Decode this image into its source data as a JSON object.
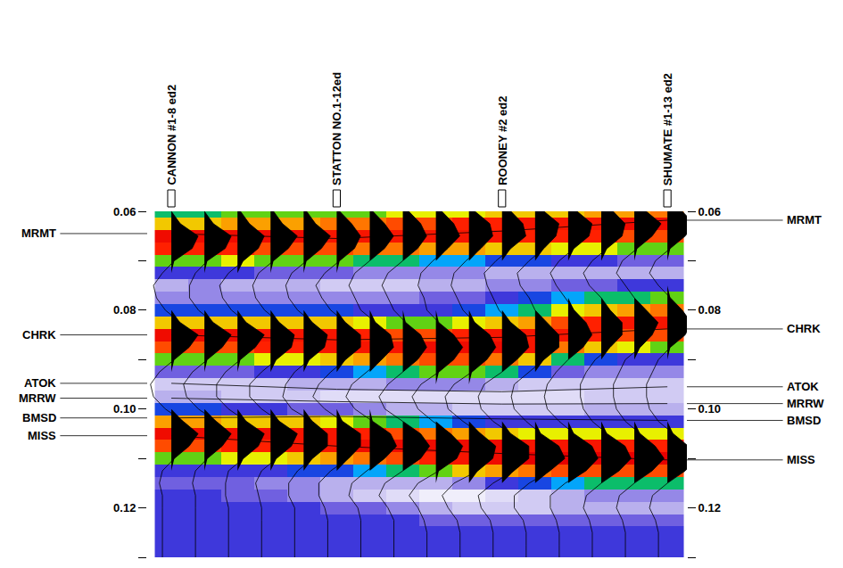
{
  "chart_data": {
    "type": "seismic_section",
    "ylim": [
      0.06,
      0.13
    ],
    "yticks": [
      0.06,
      0.08,
      {
        "value": 0.1,
        "label": "0.10"
      },
      0.12
    ],
    "yticks_minor": [
      0.07,
      0.09,
      0.11,
      0.13
    ],
    "tick_labels": "y",
    "zlim": [
      -1,
      1
    ],
    "wells": [
      {
        "name": "CANNON #1-8 ed2",
        "trace": 0
      },
      {
        "name": "STATTON NO.1-12ed",
        "trace": 5
      },
      {
        "name": "ROONEY #2 ed2",
        "trace": 10
      },
      {
        "name": "SHUMATE #1-13 ed2",
        "trace": 15
      }
    ],
    "horizons": [
      {
        "name": "MRMT",
        "times": [
          0.0645,
          0.0655,
          0.064,
          0.0618
        ]
      },
      {
        "name": "CHRK",
        "times": [
          0.085,
          0.086,
          0.0855,
          0.0838
        ]
      },
      {
        "name": "ATOK",
        "times": [
          0.0948,
          0.096,
          0.0965,
          0.0955
        ]
      },
      {
        "name": "MRRW",
        "times": [
          0.0978,
          0.0985,
          0.099,
          0.0989
        ]
      },
      {
        "name": "BMSD",
        "times": [
          0.1018,
          0.1015,
          0.102,
          0.1023
        ]
      },
      {
        "name": "MISS",
        "times": [
          0.1054,
          0.1075,
          0.109,
          0.1103
        ]
      }
    ],
    "times": [
      0.06,
      0.0625,
      0.065,
      0.0675,
      0.07,
      0.0725,
      0.075,
      0.0775,
      0.08,
      0.0825,
      0.085,
      0.0875,
      0.09,
      0.0925,
      0.095,
      0.0975,
      0.1,
      0.1025,
      0.105,
      0.1075,
      0.11,
      0.1125,
      0.115,
      0.1175,
      0.12,
      0.1225,
      0.125,
      0.1275,
      0.13
    ],
    "amplitudes": [
      [
        0.0,
        0.0,
        0.1,
        0.1,
        0.1,
        0.1,
        0.1,
        0.2,
        0.2,
        0.2,
        0.3,
        0.3,
        0.3,
        0.4,
        0.4,
        0.5
      ],
      [
        0.3,
        0.3,
        0.4,
        0.4,
        0.4,
        0.5,
        0.5,
        0.6,
        0.6,
        0.7,
        0.7,
        0.8,
        0.8,
        0.8,
        0.9,
        0.9
      ],
      [
        0.9,
        0.9,
        0.9,
        0.9,
        0.9,
        0.8,
        0.8,
        0.8,
        0.8,
        0.8,
        0.8,
        0.7,
        0.7,
        0.7,
        0.6,
        0.6
      ],
      [
        0.7,
        0.7,
        0.7,
        0.6,
        0.6,
        0.6,
        0.5,
        0.5,
        0.4,
        0.4,
        0.3,
        0.3,
        0.2,
        0.2,
        0.1,
        0.1
      ],
      [
        0.1,
        0.1,
        0.2,
        0.1,
        0.1,
        0.1,
        0.0,
        0.0,
        -0.1,
        -0.1,
        -0.2,
        -0.2,
        -0.3,
        -0.3,
        -0.4,
        -0.4
      ],
      [
        -0.3,
        -0.3,
        -0.3,
        -0.4,
        -0.4,
        -0.4,
        -0.5,
        -0.5,
        -0.5,
        -0.5,
        -0.6,
        -0.6,
        -0.6,
        -0.6,
        -0.6,
        -0.6
      ],
      [
        -0.6,
        -0.5,
        -0.6,
        -0.6,
        -0.6,
        -0.7,
        -0.7,
        -0.7,
        -0.6,
        -0.6,
        -0.5,
        -0.5,
        -0.4,
        -0.4,
        -0.3,
        -0.3
      ],
      [
        -0.5,
        -0.5,
        -0.5,
        -0.5,
        -0.5,
        -0.5,
        -0.5,
        -0.5,
        -0.4,
        -0.4,
        -0.3,
        -0.2,
        -0.1,
        0.0,
        0.0,
        0.1
      ],
      [
        -0.2,
        -0.2,
        -0.2,
        -0.2,
        -0.2,
        -0.2,
        -0.3,
        -0.3,
        -0.3,
        -0.2,
        -0.1,
        0.0,
        0.2,
        0.3,
        0.4,
        0.5
      ],
      [
        0.3,
        0.3,
        0.3,
        0.3,
        0.3,
        0.3,
        0.2,
        0.1,
        0.1,
        0.2,
        0.3,
        0.4,
        0.6,
        0.7,
        0.8,
        0.8
      ],
      [
        0.9,
        0.9,
        0.9,
        0.8,
        0.8,
        0.8,
        0.7,
        0.6,
        0.6,
        0.7,
        0.8,
        0.8,
        0.8,
        0.7,
        0.6,
        0.6
      ],
      [
        0.6,
        0.6,
        0.6,
        0.7,
        0.7,
        0.8,
        0.8,
        0.8,
        0.9,
        0.9,
        0.9,
        0.8,
        0.5,
        0.3,
        0.2,
        0.1
      ],
      [
        0.1,
        0.1,
        0.1,
        0.2,
        0.2,
        0.3,
        0.4,
        0.5,
        0.6,
        0.6,
        0.5,
        0.3,
        0.0,
        -0.2,
        -0.3,
        -0.3
      ],
      [
        -0.4,
        -0.4,
        -0.4,
        -0.3,
        -0.3,
        -0.2,
        -0.1,
        0.0,
        0.1,
        0.1,
        0.0,
        -0.2,
        -0.4,
        -0.5,
        -0.5,
        -0.5
      ],
      [
        -0.7,
        -0.7,
        -0.7,
        -0.7,
        -0.6,
        -0.6,
        -0.6,
        -0.5,
        -0.5,
        -0.5,
        -0.6,
        -0.7,
        -0.7,
        -0.7,
        -0.7,
        -0.7
      ],
      [
        -0.6,
        -0.6,
        -0.7,
        -0.7,
        -0.7,
        -0.8,
        -0.8,
        -0.8,
        -0.8,
        -0.8,
        -0.8,
        -0.8,
        -0.8,
        -0.7,
        -0.7,
        -0.7
      ],
      [
        -0.2,
        -0.2,
        -0.3,
        -0.3,
        -0.4,
        -0.4,
        -0.5,
        -0.6,
        -0.6,
        -0.7,
        -0.7,
        -0.7,
        -0.7,
        -0.6,
        -0.6,
        -0.6
      ],
      [
        0.4,
        0.4,
        0.3,
        0.3,
        0.3,
        0.2,
        0.1,
        0.0,
        -0.1,
        -0.2,
        -0.3,
        -0.3,
        -0.3,
        -0.3,
        -0.3,
        -0.3
      ],
      [
        0.9,
        0.9,
        0.9,
        0.9,
        0.8,
        0.8,
        0.7,
        0.6,
        0.5,
        0.4,
        0.3,
        0.2,
        0.2,
        0.2,
        0.2,
        0.2
      ],
      [
        0.6,
        0.6,
        0.7,
        0.7,
        0.8,
        0.8,
        0.9,
        0.9,
        0.9,
        0.9,
        0.9,
        0.8,
        0.8,
        0.8,
        0.7,
        0.7
      ],
      [
        0.1,
        0.1,
        0.2,
        0.2,
        0.3,
        0.4,
        0.5,
        0.6,
        0.7,
        0.8,
        0.9,
        1.0,
        1.0,
        1.0,
        1.0,
        1.0
      ],
      [
        -0.3,
        -0.3,
        -0.3,
        -0.3,
        -0.2,
        -0.2,
        -0.1,
        0.0,
        0.1,
        0.3,
        0.4,
        0.5,
        0.6,
        0.6,
        0.6,
        0.6
      ],
      [
        -0.4,
        -0.4,
        -0.4,
        -0.5,
        -0.5,
        -0.6,
        -0.6,
        -0.6,
        -0.6,
        -0.5,
        -0.3,
        -0.2,
        -0.1,
        0.0,
        0.0,
        0.0
      ],
      [
        -0.3,
        -0.3,
        -0.4,
        -0.4,
        -0.5,
        -0.6,
        -0.7,
        -0.8,
        -0.9,
        -0.9,
        -0.8,
        -0.7,
        -0.6,
        -0.5,
        -0.5,
        -0.5
      ],
      [
        -0.3,
        -0.3,
        -0.3,
        -0.3,
        -0.3,
        -0.4,
        -0.4,
        -0.5,
        -0.6,
        -0.7,
        -0.7,
        -0.7,
        -0.6,
        -0.6,
        -0.6,
        -0.6
      ],
      [
        -0.3,
        -0.3,
        -0.3,
        -0.3,
        -0.3,
        -0.3,
        -0.3,
        -0.3,
        -0.4,
        -0.4,
        -0.4,
        -0.4,
        -0.4,
        -0.4,
        -0.4,
        -0.4
      ],
      [
        -0.3,
        -0.3,
        -0.3,
        -0.3,
        -0.3,
        -0.3,
        -0.3,
        -0.3,
        -0.3,
        -0.3,
        -0.3,
        -0.3,
        -0.3,
        -0.3,
        -0.3,
        -0.3
      ],
      [
        -0.3,
        -0.3,
        -0.3,
        -0.3,
        -0.3,
        -0.3,
        -0.3,
        -0.3,
        -0.3,
        -0.3,
        -0.3,
        -0.3,
        -0.3,
        -0.3,
        -0.3,
        -0.3
      ],
      [
        -0.3,
        -0.3,
        -0.3,
        -0.3,
        -0.3,
        -0.3,
        -0.3,
        -0.3,
        -0.3,
        -0.3,
        -0.3,
        -0.3,
        -0.3,
        -0.3,
        -0.3,
        -0.3
      ]
    ]
  }
}
